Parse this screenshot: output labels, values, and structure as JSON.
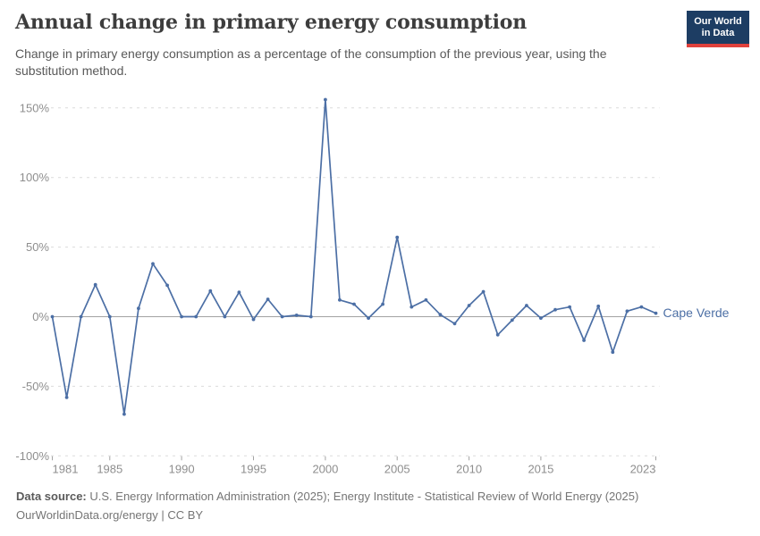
{
  "header": {
    "title": "Annual change in primary energy consumption",
    "subtitle": "Change in primary energy consumption as a percentage of the consumption of the previous year, using the substitution method."
  },
  "logo": {
    "line1": "Our World",
    "line2": "in Data"
  },
  "chart_data": {
    "type": "line",
    "title": "Annual change in primary energy consumption",
    "x": [
      1981,
      1982,
      1983,
      1984,
      1985,
      1986,
      1987,
      1988,
      1989,
      1990,
      1991,
      1992,
      1993,
      1994,
      1995,
      1996,
      1997,
      1998,
      1999,
      2000,
      2001,
      2002,
      2003,
      2004,
      2005,
      2006,
      2007,
      2008,
      2009,
      2010,
      2011,
      2012,
      2013,
      2014,
      2015,
      2016,
      2017,
      2018,
      2019,
      2020,
      2021,
      2022,
      2023
    ],
    "series": [
      {
        "name": "Cape Verde",
        "color": "#4c6fa5",
        "values": [
          0,
          -58,
          0,
          23,
          0,
          -70,
          6,
          38,
          22.5,
          0,
          0,
          18.5,
          0,
          17.5,
          -2,
          12.5,
          0,
          1,
          0,
          156,
          12,
          9,
          -1,
          9,
          57,
          7,
          12,
          1.5,
          -5,
          8,
          18,
          -13,
          -2.5,
          8,
          -1,
          5,
          7,
          -17,
          7.5,
          -25.5,
          4,
          7,
          2.5
        ]
      }
    ],
    "xlabel": "",
    "ylabel": "",
    "xlim": [
      1981,
      2023
    ],
    "ylim": [
      -100,
      160
    ],
    "x_ticks": [
      1981,
      1985,
      1990,
      1995,
      2000,
      2005,
      2010,
      2015,
      2023
    ],
    "y_ticks": [
      150,
      100,
      50,
      0,
      -50,
      -100
    ],
    "y_tick_suffix": "%",
    "grid": "horizontal dashed gridlines, solid zero line",
    "legend": "inline label at end of line"
  },
  "footer": {
    "source_label": "Data source:",
    "source_text": "U.S. Energy Information Administration (2025); Energy Institute - Statistical Review of World Energy (2025)",
    "license_text": "OurWorldinData.org/energy | CC BY"
  },
  "colors": {
    "series": "#4c6fa5",
    "grid": "#dcdcdc",
    "zero_line": "#a3a3a3",
    "axis_text": "#8e8e8e",
    "tick_mark": "#a3a3a3",
    "title": "#3d3d3d",
    "subtitle": "#595959",
    "footer": "#757575",
    "logo_bg": "#1d3d63",
    "logo_stripe": "#e0413c"
  }
}
